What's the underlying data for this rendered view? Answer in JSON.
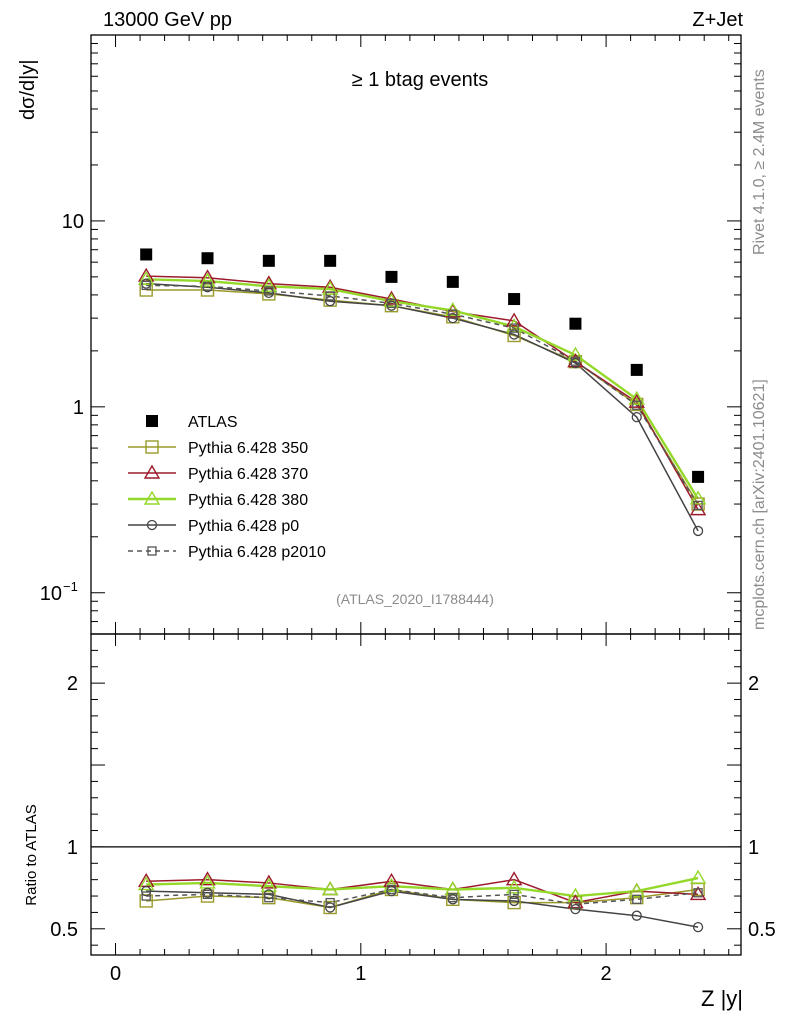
{
  "header": {
    "left": "13000 GeV pp",
    "right": "Z+Jet"
  },
  "title": "≥ 1 btag events",
  "side_label_top": "Rivet 4.1.0, ≥ 2.4M events",
  "side_label_bottom": "mcplots.cern.ch [arXiv:2401.10621]",
  "analysis_label": "(ATLAS_2020_I1788444)",
  "chart_data": [
    {
      "type": "scatter",
      "panel": "main",
      "yscale": "log",
      "ylabel": "dσ/d|y|",
      "xlabel": "Z |y|",
      "xlim": [
        -0.1,
        2.55
      ],
      "ylim": [
        0.06,
        100
      ],
      "xticks": [
        {
          "value": 0,
          "label": "0"
        },
        {
          "value": 1,
          "label": "1"
        },
        {
          "value": 2,
          "label": "2"
        }
      ],
      "yticks": [
        {
          "value": 10,
          "label": "10"
        },
        {
          "value": 1,
          "label": "1"
        },
        {
          "value": 0.1,
          "label": "10",
          "sup": "−1"
        }
      ],
      "x": [
        0.125,
        0.375,
        0.625,
        0.875,
        1.125,
        1.375,
        1.625,
        1.875,
        2.125,
        2.375
      ],
      "series": [
        {
          "name": "ATLAS",
          "color": "#000000",
          "marker": "filled-square",
          "line": "none",
          "values": [
            6.6,
            6.3,
            6.1,
            6.1,
            5.0,
            4.7,
            3.8,
            2.8,
            1.58,
            0.42
          ]
        },
        {
          "name": "Pythia 6.428 350",
          "color": "#9a9a2a",
          "marker": "open-square",
          "line": "solid",
          "values": [
            4.25,
            4.25,
            4.05,
            3.75,
            3.5,
            3.05,
            2.42,
            1.75,
            1.03,
            0.3
          ]
        },
        {
          "name": "Pythia 6.428 370",
          "color": "#9b1b2c",
          "marker": "open-triangle",
          "line": "solid",
          "values": [
            5.05,
            4.95,
            4.6,
            4.4,
            3.8,
            3.25,
            2.9,
            1.75,
            1.06,
            0.28
          ]
        },
        {
          "name": "Pythia 6.428 380",
          "color": "#94d82a",
          "marker": "open-triangle",
          "line": "solid",
          "values": [
            4.85,
            4.75,
            4.45,
            4.3,
            3.7,
            3.3,
            2.7,
            1.9,
            1.1,
            0.32
          ]
        },
        {
          "name": "Pythia 6.428 p0",
          "color": "#444444",
          "marker": "open-circle",
          "line": "solid",
          "values": [
            4.6,
            4.4,
            4.1,
            3.7,
            3.5,
            3.0,
            2.45,
            1.72,
            0.88,
            0.215
          ]
        },
        {
          "name": "Pythia 6.428 p2010",
          "color": "#555555",
          "marker": "open-square-small",
          "line": "dashed",
          "values": [
            4.5,
            4.45,
            4.2,
            3.95,
            3.6,
            3.15,
            2.65,
            1.76,
            1.02,
            0.295
          ]
        }
      ]
    },
    {
      "type": "line",
      "panel": "ratio",
      "ylabel": "Ratio to ATLAS",
      "xlabel": "Z |y|",
      "xlim": [
        -0.1,
        2.55
      ],
      "ylim": [
        0.34,
        2.3
      ],
      "yticks": [
        {
          "value": 2,
          "label": "2"
        },
        {
          "value": 1,
          "label": "1"
        },
        {
          "value": 0.5,
          "label": "0.5"
        }
      ],
      "reference": 1,
      "x": [
        0.125,
        0.375,
        0.625,
        0.875,
        1.125,
        1.375,
        1.625,
        1.875,
        2.125,
        2.375
      ],
      "series": [
        {
          "name": "Pythia 6.428 350",
          "values": [
            0.67,
            0.7,
            0.69,
            0.63,
            0.74,
            0.68,
            0.66,
            0.66,
            0.69,
            0.74
          ]
        },
        {
          "name": "Pythia 6.428 370",
          "values": [
            0.79,
            0.8,
            0.78,
            0.74,
            0.79,
            0.74,
            0.8,
            0.66,
            0.73,
            0.71
          ]
        },
        {
          "name": "Pythia 6.428 380",
          "values": [
            0.77,
            0.78,
            0.76,
            0.74,
            0.76,
            0.74,
            0.75,
            0.7,
            0.73,
            0.81
          ]
        },
        {
          "name": "Pythia 6.428 p0",
          "values": [
            0.73,
            0.72,
            0.71,
            0.63,
            0.73,
            0.68,
            0.67,
            0.62,
            0.58,
            0.51
          ]
        },
        {
          "name": "Pythia 6.428 p2010",
          "values": [
            0.7,
            0.71,
            0.69,
            0.66,
            0.74,
            0.69,
            0.71,
            0.65,
            0.68,
            0.72
          ]
        }
      ]
    }
  ]
}
